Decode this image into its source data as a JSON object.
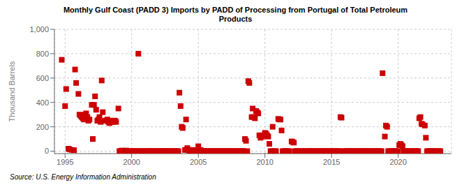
{
  "chart_data": {
    "type": "scatter",
    "title": "Monthly Gulf Coast (PADD 3) Imports by PADD of Processing from Portugal of Total Petroleum\nProducts",
    "ylabel": "Thousand Barrels",
    "annotations": [
      "Source: U.S. Energy Information Administration"
    ],
    "color": "#cc0000",
    "marker": "square",
    "grid": true,
    "xlim": [
      1994.2,
      2024.0
    ],
    "xticks": [
      1995,
      2000,
      2005,
      2010,
      2015,
      2020
    ],
    "ylim": [
      -20,
      1000
    ],
    "yticks": [
      0,
      200,
      400,
      600,
      800,
      {
        "value": 1000,
        "label": "1,000"
      }
    ],
    "x": [
      1994.75,
      1995.0,
      1995.08,
      1995.25,
      1995.33,
      1995.5,
      1995.67,
      1995.75,
      1995.83,
      1996.0,
      1996.08,
      1996.17,
      1996.25,
      1996.33,
      1996.42,
      1996.5,
      1996.58,
      1996.67,
      1996.75,
      1996.83,
      1997.0,
      1997.08,
      1997.17,
      1997.25,
      1997.33,
      1997.42,
      1997.5,
      1997.58,
      1997.67,
      1997.75,
      1997.83,
      1998.0,
      1998.08,
      1998.17,
      1998.25,
      1998.33,
      1998.42,
      1998.5,
      1998.58,
      1998.67,
      1998.75,
      1998.83,
      1999.0,
      1999.08,
      1999.17,
      1999.25,
      1999.33,
      1999.42,
      1999.5,
      1999.58,
      1999.67,
      1999.75,
      1999.83,
      2000.0,
      2000.08,
      2000.17,
      2000.25,
      2000.33,
      2000.42,
      2000.5,
      2000.58,
      2000.67,
      2000.75,
      2000.83,
      2001.0,
      2001.08,
      2001.17,
      2001.25,
      2001.33,
      2001.42,
      2001.5,
      2001.58,
      2001.67,
      2001.75,
      2001.83,
      2002.0,
      2002.08,
      2002.17,
      2002.25,
      2002.33,
      2002.42,
      2002.5,
      2002.58,
      2002.67,
      2002.75,
      2002.83,
      2003.0,
      2003.08,
      2003.17,
      2003.25,
      2003.33,
      2003.42,
      2003.5,
      2003.58,
      2003.67,
      2003.75,
      2003.83,
      2004.0,
      2004.08,
      2004.17,
      2004.25,
      2004.33,
      2004.42,
      2004.5,
      2004.58,
      2004.67,
      2004.75,
      2004.83,
      2005.0,
      2005.08,
      2005.17,
      2005.25,
      2005.33,
      2005.42,
      2005.5,
      2005.58,
      2005.67,
      2005.75,
      2005.83,
      2006.0,
      2006.08,
      2006.17,
      2006.25,
      2006.33,
      2006.42,
      2006.5,
      2006.58,
      2006.67,
      2006.75,
      2006.83,
      2007.0,
      2007.08,
      2007.17,
      2007.25,
      2007.33,
      2007.42,
      2007.5,
      2007.58,
      2007.67,
      2007.75,
      2007.83,
      2008.0,
      2008.08,
      2008.17,
      2008.25,
      2008.33,
      2008.42,
      2008.5,
      2008.58,
      2008.67,
      2008.75,
      2008.83,
      2009.0,
      2009.08,
      2009.17,
      2009.25,
      2009.33,
      2009.42,
      2009.5,
      2009.58,
      2009.67,
      2009.75,
      2009.83,
      2010.0,
      2010.08,
      2010.17,
      2010.25,
      2010.33,
      2010.42,
      2010.5,
      2010.58,
      2010.67,
      2010.75,
      2010.83,
      2011.0,
      2011.08,
      2011.17,
      2011.25,
      2011.33,
      2011.42,
      2011.5,
      2011.58,
      2011.67,
      2011.75,
      2011.83,
      2012.0,
      2012.08,
      2012.17,
      2012.25,
      2012.33,
      2012.42,
      2012.5,
      2012.58,
      2012.67,
      2012.75,
      2012.83,
      2013.0,
      2013.08,
      2013.17,
      2013.25,
      2013.33,
      2013.42,
      2013.5,
      2013.58,
      2013.67,
      2013.75,
      2013.83,
      2014.0,
      2014.08,
      2014.17,
      2014.25,
      2014.33,
      2014.42,
      2014.5,
      2014.58,
      2014.67,
      2014.75,
      2014.83,
      2015.0,
      2015.08,
      2015.17,
      2015.25,
      2015.33,
      2015.42,
      2015.5,
      2015.58,
      2015.67,
      2015.75,
      2015.83,
      2016.0,
      2016.08,
      2016.17,
      2016.25,
      2016.33,
      2016.42,
      2016.5,
      2016.58,
      2016.67,
      2016.75,
      2016.83,
      2017.0,
      2017.08,
      2017.17,
      2017.25,
      2017.33,
      2017.42,
      2017.5,
      2017.58,
      2017.67,
      2017.75,
      2017.83,
      2018.0,
      2018.08,
      2018.17,
      2018.25,
      2018.33,
      2018.42,
      2018.5,
      2018.58,
      2018.67,
      2018.75,
      2018.83,
      2019.0,
      2019.08,
      2019.17,
      2019.25,
      2019.33,
      2019.42,
      2019.5,
      2019.58,
      2019.67,
      2019.75,
      2019.83,
      2020.0,
      2020.08,
      2020.17,
      2020.25,
      2020.33,
      2020.42,
      2020.5,
      2020.58,
      2020.67,
      2020.75,
      2020.83,
      2021.0,
      2021.08,
      2021.17,
      2021.25,
      2021.33,
      2021.42,
      2021.5,
      2021.58,
      2021.67,
      2021.75,
      2021.83,
      2022.0,
      2022.08,
      2022.17,
      2022.25,
      2022.33,
      2022.42,
      2022.5,
      2022.58,
      2022.67,
      2022.75,
      2022.83,
      2023.0,
      2023.08,
      2023.17
    ],
    "values": [
      750,
      370,
      510,
      20,
      15,
      10,
      8,
      670,
      560,
      470,
      300,
      290,
      280,
      270,
      260,
      300,
      310,
      280,
      250,
      260,
      380,
      100,
      380,
      450,
      340,
      250,
      260,
      280,
      240,
      580,
      320,
      250,
      250,
      260,
      240,
      230,
      250,
      240,
      240,
      250,
      250,
      240,
      350,
      0,
      0,
      5,
      0,
      0,
      0,
      5,
      0,
      0,
      0,
      0,
      0,
      0,
      0,
      0,
      0,
      800,
      0,
      0,
      0,
      0,
      0,
      0,
      0,
      0,
      0,
      0,
      0,
      0,
      0,
      0,
      0,
      0,
      0,
      0,
      0,
      0,
      0,
      0,
      0,
      0,
      0,
      0,
      0,
      0,
      0,
      0,
      0,
      0,
      0,
      480,
      370,
      200,
      190,
      10,
      260,
      25,
      10,
      0,
      0,
      0,
      10,
      0,
      0,
      0,
      40,
      0,
      10,
      0,
      0,
      0,
      0,
      0,
      0,
      0,
      0,
      0,
      0,
      0,
      0,
      0,
      0,
      0,
      0,
      0,
      0,
      0,
      0,
      0,
      0,
      0,
      0,
      0,
      0,
      0,
      0,
      0,
      0,
      0,
      0,
      0,
      0,
      0,
      0,
      100,
      85,
      0,
      575,
      560,
      280,
      350,
      280,
      270,
      330,
      320,
      310,
      130,
      110,
      130,
      120,
      150,
      145,
      130,
      120,
      60,
      0,
      0,
      200,
      0,
      0,
      0,
      265,
      260,
      260,
      170,
      0,
      0,
      0,
      0,
      0,
      0,
      0,
      80,
      75,
      70,
      0,
      0,
      0,
      0,
      0,
      0,
      0,
      0,
      0,
      0,
      0,
      0,
      0,
      0,
      0,
      0,
      0,
      0,
      0,
      0,
      0,
      0,
      0,
      0,
      0,
      0,
      0,
      0,
      0,
      0,
      0,
      0,
      0,
      0,
      0,
      0,
      0,
      0,
      280,
      275,
      0,
      0,
      0,
      0,
      0,
      0,
      0,
      0,
      0,
      0,
      0,
      0,
      0,
      0,
      0,
      0,
      0,
      0,
      0,
      0,
      0,
      0,
      0,
      0,
      0,
      0,
      0,
      0,
      0,
      0,
      0,
      0,
      0,
      640,
      120,
      210,
      200,
      0,
      0,
      0,
      0,
      0,
      0,
      0,
      0,
      0,
      50,
      60,
      50,
      40,
      0,
      0,
      0,
      0,
      0,
      0,
      0,
      0,
      0,
      0,
      0,
      0,
      0,
      270,
      280,
      225,
      220,
      210,
      110,
      0,
      0,
      0,
      0,
      0,
      0,
      0,
      0,
      0,
      0,
      0,
      0
    ]
  }
}
